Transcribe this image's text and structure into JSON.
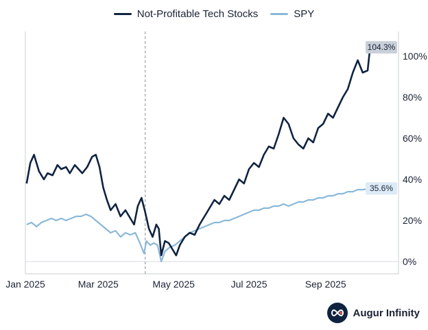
{
  "chart_data": {
    "type": "line",
    "title": "",
    "xlabel": "",
    "ylabel": "",
    "x_tick_labels": [
      "Jan 2025",
      "Mar 2025",
      "May 2025",
      "Jul 2025",
      "Sep 2025"
    ],
    "y_tick_labels": [
      "0%",
      "20%",
      "40%",
      "60%",
      "80%",
      "100%"
    ],
    "ylim": [
      -6,
      112
    ],
    "legend_position": "top-center",
    "grid": false,
    "reference_line": {
      "type": "vertical-dashed",
      "date": "2025-04-08"
    },
    "series": [
      {
        "name": "Not-Profitable Tech Stocks",
        "color": "#0f2340",
        "end_label": "104.3%",
        "values": [
          [
            "2025-01-02",
            38
          ],
          [
            "2025-01-05",
            48
          ],
          [
            "2025-01-08",
            52
          ],
          [
            "2025-01-12",
            44
          ],
          [
            "2025-01-16",
            40
          ],
          [
            "2025-01-19",
            43
          ],
          [
            "2025-01-23",
            42
          ],
          [
            "2025-01-27",
            47
          ],
          [
            "2025-01-30",
            45
          ],
          [
            "2025-02-03",
            46
          ],
          [
            "2025-02-06",
            43
          ],
          [
            "2025-02-10",
            47
          ],
          [
            "2025-02-13",
            45
          ],
          [
            "2025-02-16",
            43
          ],
          [
            "2025-02-20",
            46
          ],
          [
            "2025-02-24",
            51
          ],
          [
            "2025-02-27",
            52
          ],
          [
            "2025-03-02",
            46
          ],
          [
            "2025-03-05",
            36
          ],
          [
            "2025-03-08",
            30
          ],
          [
            "2025-03-11",
            25
          ],
          [
            "2025-03-15",
            28
          ],
          [
            "2025-03-19",
            22
          ],
          [
            "2025-03-23",
            25
          ],
          [
            "2025-03-27",
            21
          ],
          [
            "2025-03-30",
            18
          ],
          [
            "2025-04-02",
            27
          ],
          [
            "2025-04-05",
            31
          ],
          [
            "2025-04-08",
            24
          ],
          [
            "2025-04-11",
            16
          ],
          [
            "2025-04-14",
            12
          ],
          [
            "2025-04-17",
            18
          ],
          [
            "2025-04-19",
            16
          ],
          [
            "2025-04-21",
            3
          ],
          [
            "2025-04-24",
            10
          ],
          [
            "2025-04-27",
            9
          ],
          [
            "2025-04-30",
            6
          ],
          [
            "2025-05-03",
            3
          ],
          [
            "2025-05-06",
            8
          ],
          [
            "2025-05-10",
            12
          ],
          [
            "2025-05-14",
            14
          ],
          [
            "2025-05-18",
            13
          ],
          [
            "2025-05-22",
            18
          ],
          [
            "2025-05-26",
            22
          ],
          [
            "2025-05-30",
            26
          ],
          [
            "2025-06-03",
            30
          ],
          [
            "2025-06-07",
            28
          ],
          [
            "2025-06-11",
            32
          ],
          [
            "2025-06-15",
            30
          ],
          [
            "2025-06-19",
            35
          ],
          [
            "2025-06-23",
            40
          ],
          [
            "2025-06-27",
            38
          ],
          [
            "2025-07-01",
            45
          ],
          [
            "2025-07-05",
            48
          ],
          [
            "2025-07-09",
            46
          ],
          [
            "2025-07-13",
            52
          ],
          [
            "2025-07-17",
            56
          ],
          [
            "2025-07-21",
            55
          ],
          [
            "2025-07-25",
            62
          ],
          [
            "2025-07-29",
            70
          ],
          [
            "2025-08-02",
            67
          ],
          [
            "2025-08-06",
            60
          ],
          [
            "2025-08-10",
            57
          ],
          [
            "2025-08-14",
            55
          ],
          [
            "2025-08-18",
            60
          ],
          [
            "2025-08-22",
            58
          ],
          [
            "2025-08-26",
            65
          ],
          [
            "2025-08-30",
            67
          ],
          [
            "2025-09-03",
            72
          ],
          [
            "2025-09-07",
            70
          ],
          [
            "2025-09-11",
            75
          ],
          [
            "2025-09-15",
            80
          ],
          [
            "2025-09-19",
            84
          ],
          [
            "2025-09-23",
            92
          ],
          [
            "2025-09-27",
            98
          ],
          [
            "2025-10-01",
            92
          ],
          [
            "2025-10-05",
            93
          ],
          [
            "2025-10-07",
            104.3
          ]
        ]
      },
      {
        "name": "SPY",
        "color": "#8ab8d8",
        "end_label": "35.6%",
        "values": [
          [
            "2025-01-02",
            18
          ],
          [
            "2025-01-06",
            19
          ],
          [
            "2025-01-10",
            17
          ],
          [
            "2025-01-14",
            19
          ],
          [
            "2025-01-18",
            20
          ],
          [
            "2025-01-22",
            21
          ],
          [
            "2025-01-26",
            20
          ],
          [
            "2025-01-30",
            21
          ],
          [
            "2025-02-03",
            20
          ],
          [
            "2025-02-07",
            21
          ],
          [
            "2025-02-11",
            22
          ],
          [
            "2025-02-15",
            22
          ],
          [
            "2025-02-19",
            23
          ],
          [
            "2025-02-23",
            22
          ],
          [
            "2025-02-27",
            20
          ],
          [
            "2025-03-03",
            18
          ],
          [
            "2025-03-07",
            16
          ],
          [
            "2025-03-11",
            14
          ],
          [
            "2025-03-15",
            15
          ],
          [
            "2025-03-19",
            12
          ],
          [
            "2025-03-23",
            14
          ],
          [
            "2025-03-27",
            13
          ],
          [
            "2025-03-31",
            14
          ],
          [
            "2025-04-03",
            10
          ],
          [
            "2025-04-07",
            4
          ],
          [
            "2025-04-09",
            10
          ],
          [
            "2025-04-12",
            8
          ],
          [
            "2025-04-15",
            9
          ],
          [
            "2025-04-18",
            8
          ],
          [
            "2025-04-21",
            0
          ],
          [
            "2025-04-24",
            5
          ],
          [
            "2025-04-28",
            7
          ],
          [
            "2025-05-02",
            8
          ],
          [
            "2025-05-06",
            10
          ],
          [
            "2025-05-10",
            12
          ],
          [
            "2025-05-14",
            14
          ],
          [
            "2025-05-18",
            15
          ],
          [
            "2025-05-22",
            16
          ],
          [
            "2025-05-26",
            17
          ],
          [
            "2025-05-30",
            18
          ],
          [
            "2025-06-03",
            19
          ],
          [
            "2025-06-07",
            19
          ],
          [
            "2025-06-11",
            20
          ],
          [
            "2025-06-15",
            20
          ],
          [
            "2025-06-19",
            21
          ],
          [
            "2025-06-23",
            22
          ],
          [
            "2025-06-27",
            23
          ],
          [
            "2025-07-01",
            24
          ],
          [
            "2025-07-05",
            25
          ],
          [
            "2025-07-09",
            25
          ],
          [
            "2025-07-13",
            26
          ],
          [
            "2025-07-17",
            26
          ],
          [
            "2025-07-21",
            27
          ],
          [
            "2025-07-25",
            27
          ],
          [
            "2025-07-29",
            28
          ],
          [
            "2025-08-02",
            27
          ],
          [
            "2025-08-06",
            28
          ],
          [
            "2025-08-10",
            29
          ],
          [
            "2025-08-14",
            29
          ],
          [
            "2025-08-18",
            30
          ],
          [
            "2025-08-22",
            30
          ],
          [
            "2025-08-26",
            31
          ],
          [
            "2025-08-30",
            31
          ],
          [
            "2025-09-03",
            32
          ],
          [
            "2025-09-07",
            32
          ],
          [
            "2025-09-11",
            33
          ],
          [
            "2025-09-15",
            33
          ],
          [
            "2025-09-19",
            34
          ],
          [
            "2025-09-23",
            34
          ],
          [
            "2025-09-27",
            35
          ],
          [
            "2025-10-01",
            35
          ],
          [
            "2025-10-07",
            35.6
          ]
        ]
      }
    ]
  },
  "footer": {
    "brand": "Augur Infinity",
    "logo_icon": "infinity-icon"
  }
}
